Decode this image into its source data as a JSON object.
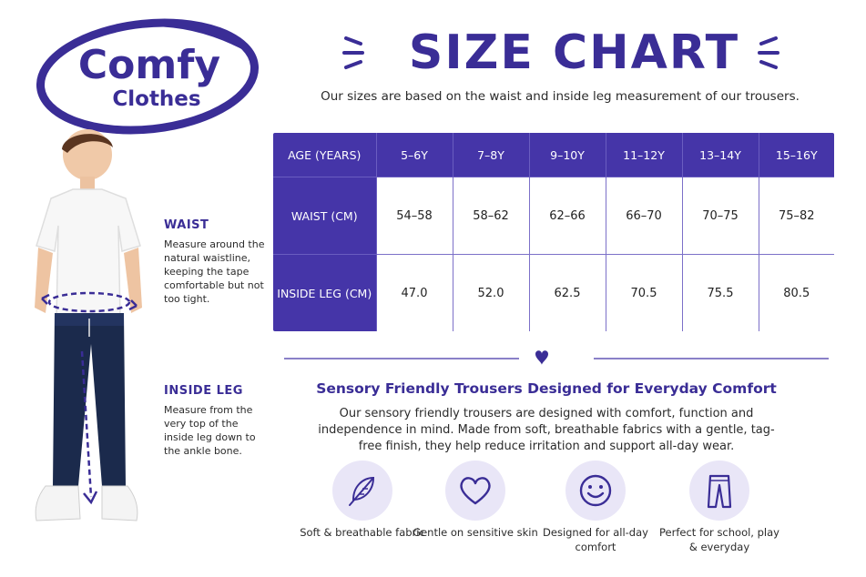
{
  "logo": {
    "line1": "Comfy",
    "line2": "Clothes"
  },
  "title": "SIZE CHART",
  "subtitle": "Our sizes are based on the waist and inside leg measurement of our trousers.",
  "table": {
    "header_label": "AGE (YEARS)",
    "ages": [
      "5–6Y",
      "7–8Y",
      "9–10Y",
      "11–12Y",
      "13–14Y",
      "15–16Y"
    ],
    "rows": [
      {
        "label": "WAIST (CM)",
        "values": [
          "54–58",
          "58–62",
          "62–66",
          "66–70",
          "70–75",
          "75–82"
        ]
      },
      {
        "label": "INSIDE LEG (CM)",
        "values": [
          "47.0",
          "52.0",
          "62.5",
          "70.5",
          "75.5",
          "80.5"
        ]
      }
    ]
  },
  "measurements": {
    "waist": {
      "title": "WAIST",
      "text": "Measure around the natural waistline, keeping the tape comfortable but not too tight."
    },
    "inside_leg": {
      "title": "INSIDE LEG",
      "text": "Measure from the very top of the inside leg down to the ankle bone."
    }
  },
  "section": {
    "title": "Sensory Friendly Trousers Designed for Everyday Comfort",
    "body": "Our sensory friendly trousers are designed with comfort, function and independence in mind. Made from soft, breathable fabrics with a gentle, tag-free finish, they help reduce irritation and support all-day wear."
  },
  "features": [
    {
      "icon": "feather-icon",
      "label": "Soft & breathable fabric"
    },
    {
      "icon": "heart-icon",
      "label": "Gentle on sensitive skin"
    },
    {
      "icon": "smiley-icon",
      "label": "Designed for all-day comfort"
    },
    {
      "icon": "trousers-icon",
      "label": "Perfect for school, play & everyday"
    }
  ],
  "colors": {
    "brand": "#3a2d96",
    "table_header": "#4535a8",
    "icon_bg": "#e9e6f7"
  }
}
